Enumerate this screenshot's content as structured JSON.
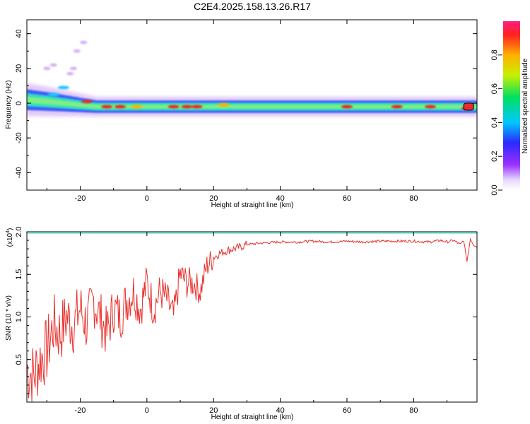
{
  "title": "C2E4.2025.158.13.26.R17",
  "colors": {
    "snr_line": "#e8302c",
    "band_core": "#e82c2c",
    "band_mid": "#2ee0c0",
    "band_edge": "#3050ff",
    "band_fringe": "#8a2be2"
  },
  "chart_data": [
    {
      "type": "heatmap",
      "name": "spectrogram",
      "xlabel": "Height of straight line (km)",
      "ylabel": "Frequency (Hz)",
      "xlim": [
        -36,
        99
      ],
      "ylim": [
        -50,
        48
      ],
      "xticks": [
        -20,
        0,
        20,
        40,
        60,
        80
      ],
      "yticks": [
        -40,
        -20,
        0,
        20,
        40
      ],
      "colorbar": {
        "label": "Normalized spectral amplitude",
        "range": [
          0,
          1
        ],
        "ticks": [
          0.0,
          0.2,
          0.4,
          0.6,
          0.8
        ]
      },
      "ridge": {
        "x": [
          -36,
          -30,
          -25,
          -20,
          -15,
          -10,
          0,
          20,
          40,
          60,
          80,
          99
        ],
        "frequency": [
          2,
          1,
          0,
          -1,
          -2,
          -2,
          -2,
          -2,
          -2,
          -2,
          -2,
          -2
        ],
        "bandwidth": [
          10,
          9,
          8,
          7,
          6,
          6,
          6,
          6,
          6,
          6,
          6,
          6
        ]
      },
      "hotspots": [
        {
          "x": -28,
          "frequency": 5,
          "amplitude": 0.6
        },
        {
          "x": -25,
          "frequency": 9,
          "amplitude": 0.3
        },
        {
          "x": -18,
          "frequency": 1,
          "amplitude": 0.9
        },
        {
          "x": -12,
          "frequency": -2,
          "amplitude": 0.9
        },
        {
          "x": -8,
          "frequency": -2,
          "amplitude": 0.85
        },
        {
          "x": -3,
          "frequency": -2,
          "amplitude": 0.8
        },
        {
          "x": 8,
          "frequency": -2,
          "amplitude": 0.95
        },
        {
          "x": 12,
          "frequency": -2,
          "amplitude": 0.9
        },
        {
          "x": 15,
          "frequency": -2,
          "amplitude": 0.9
        },
        {
          "x": 23,
          "frequency": -1,
          "amplitude": 0.8
        },
        {
          "x": 60,
          "frequency": -2,
          "amplitude": 0.85
        },
        {
          "x": 75,
          "frequency": -2,
          "amplitude": 0.85
        },
        {
          "x": 85,
          "frequency": -2,
          "amplitude": 0.9
        },
        {
          "x": 96,
          "frequency": -3,
          "amplitude": 1.0
        }
      ],
      "scatter_blobs": [
        {
          "x": -30,
          "frequency": 20
        },
        {
          "x": -28,
          "frequency": 22
        },
        {
          "x": -23,
          "frequency": 17
        },
        {
          "x": -22,
          "frequency": 20
        },
        {
          "x": -21,
          "frequency": 30
        },
        {
          "x": -19,
          "frequency": 35
        }
      ]
    },
    {
      "type": "line",
      "name": "snr",
      "xlabel": "Height of straight line (km)",
      "ylabel": "SNR (10 * v/v)",
      "scale_note": "(x10",
      "scale_exp": "4",
      "xlim": [
        -36,
        99
      ],
      "ylim": [
        0,
        2.0
      ],
      "xticks": [
        -20,
        0,
        20,
        40,
        60,
        80
      ],
      "yticks": [
        0.5,
        1.0,
        1.5,
        2.0
      ],
      "series": [
        {
          "x": [
            -36,
            -34,
            -32,
            -30,
            -28,
            -26,
            -24,
            -22,
            -20,
            -18,
            -16,
            -14,
            -12,
            -10,
            -8,
            -6,
            -4,
            -2,
            0,
            2,
            4,
            6,
            8,
            10,
            12,
            14,
            16,
            18,
            20,
            22,
            24,
            26,
            28,
            30,
            35,
            40,
            45,
            50,
            55,
            60,
            65,
            70,
            75,
            80,
            85,
            88,
            90,
            92,
            94,
            95,
            96,
            97,
            98,
            99
          ],
          "y": [
            0.4,
            0.3,
            0.5,
            0.6,
            0.9,
            0.8,
            1.0,
            0.9,
            1.1,
            0.9,
            1.2,
            1.0,
            0.8,
            1.1,
            1.0,
            1.2,
            1.3,
            1.1,
            1.4,
            1.1,
            1.3,
            1.2,
            1.0,
            1.5,
            1.4,
            1.4,
            1.3,
            1.6,
            1.7,
            1.75,
            1.78,
            1.8,
            1.82,
            1.85,
            1.87,
            1.88,
            1.88,
            1.89,
            1.88,
            1.89,
            1.88,
            1.89,
            1.89,
            1.89,
            1.88,
            1.9,
            1.88,
            1.9,
            1.85,
            1.9,
            1.65,
            1.92,
            1.85,
            1.82
          ]
        }
      ]
    }
  ]
}
